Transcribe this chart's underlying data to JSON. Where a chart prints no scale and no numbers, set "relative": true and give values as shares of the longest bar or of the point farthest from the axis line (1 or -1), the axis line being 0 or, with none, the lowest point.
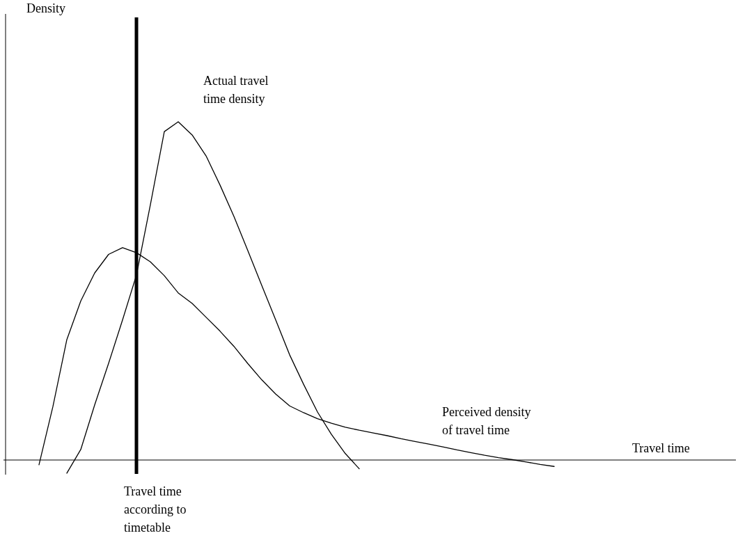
{
  "chart_data": {
    "type": "line",
    "relative": true,
    "xlabel": "Travel time",
    "marker": "none",
    "line_style": "solid",
    "categories": [
      null,
      null,
      null,
      null,
      null,
      null,
      null,
      null,
      null,
      null,
      null,
      null,
      null,
      null,
      null,
      null,
      null,
      null,
      null,
      null,
      null,
      null,
      null,
      null,
      null,
      null,
      null,
      null,
      null,
      null,
      null,
      null,
      null,
      null,
      null,
      null,
      null,
      null,
      null,
      null
    ],
    "series": [
      {
        "name": "Actual travel time density",
        "color": "#000000",
        "values": [
          null,
          null,
          null,
          -0.039,
          0.031,
          0.163,
          0.286,
          0.414,
          0.547,
          0.755,
          0.971,
          1.0,
          0.961,
          0.899,
          0.813,
          0.72,
          0.619,
          0.516,
          0.414,
          0.311,
          0.224,
          0.142,
          0.076,
          0.019,
          -0.026,
          null,
          null,
          null,
          null,
          null,
          null,
          null,
          null,
          null,
          null,
          null,
          null,
          null,
          null,
          null
        ]
      },
      {
        "name": "Perceived density of travel time",
        "color": "#000000",
        "values": [
          null,
          -0.014,
          0.158,
          0.356,
          0.47,
          0.553,
          0.608,
          0.628,
          0.613,
          0.586,
          0.545,
          0.494,
          0.463,
          0.422,
          0.381,
          0.336,
          0.285,
          0.237,
          0.195,
          0.16,
          0.14,
          0.122,
          0.109,
          0.097,
          0.088,
          0.08,
          0.072,
          0.063,
          0.055,
          0.047,
          0.039,
          0.03,
          0.022,
          0.014,
          0.007,
          0.001,
          -0.006,
          -0.013,
          -0.019,
          null
        ]
      }
    ],
    "annotations": [
      "Density",
      "Travel time according to timetable"
    ]
  }
}
